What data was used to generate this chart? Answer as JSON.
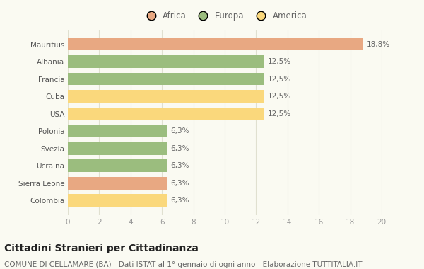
{
  "categories": [
    "Colombia",
    "Sierra Leone",
    "Ucraina",
    "Svezia",
    "Polonia",
    "USA",
    "Cuba",
    "Francia",
    "Albania",
    "Mauritius"
  ],
  "values": [
    6.3,
    6.3,
    6.3,
    6.3,
    6.3,
    12.5,
    12.5,
    12.5,
    12.5,
    18.8
  ],
  "colors": [
    "#FAD87C",
    "#E8A882",
    "#9BBD7E",
    "#9BBD7E",
    "#9BBD7E",
    "#FAD87C",
    "#FAD87C",
    "#9BBD7E",
    "#9BBD7E",
    "#E8A882"
  ],
  "labels": [
    "6,3%",
    "6,3%",
    "6,3%",
    "6,3%",
    "6,3%",
    "12,5%",
    "12,5%",
    "12,5%",
    "12,5%",
    "18,8%"
  ],
  "xlim": [
    0,
    20
  ],
  "xticks": [
    0,
    2,
    4,
    6,
    8,
    10,
    12,
    14,
    16,
    18,
    20
  ],
  "title": "Cittadini Stranieri per Cittadinanza",
  "subtitle": "COMUNE DI CELLAMARE (BA) - Dati ISTAT al 1° gennaio di ogni anno - Elaborazione TUTTITALIA.IT",
  "legend_labels": [
    "Africa",
    "Europa",
    "America"
  ],
  "legend_colors": [
    "#E8A882",
    "#9BBD7E",
    "#FAD87C"
  ],
  "bg_color": "#FAFAF2",
  "grid_color": "#E0E0D0",
  "bar_height": 0.72,
  "title_fontsize": 10,
  "subtitle_fontsize": 7.5,
  "label_fontsize": 7.5,
  "tick_fontsize": 7.5,
  "legend_fontsize": 8.5
}
